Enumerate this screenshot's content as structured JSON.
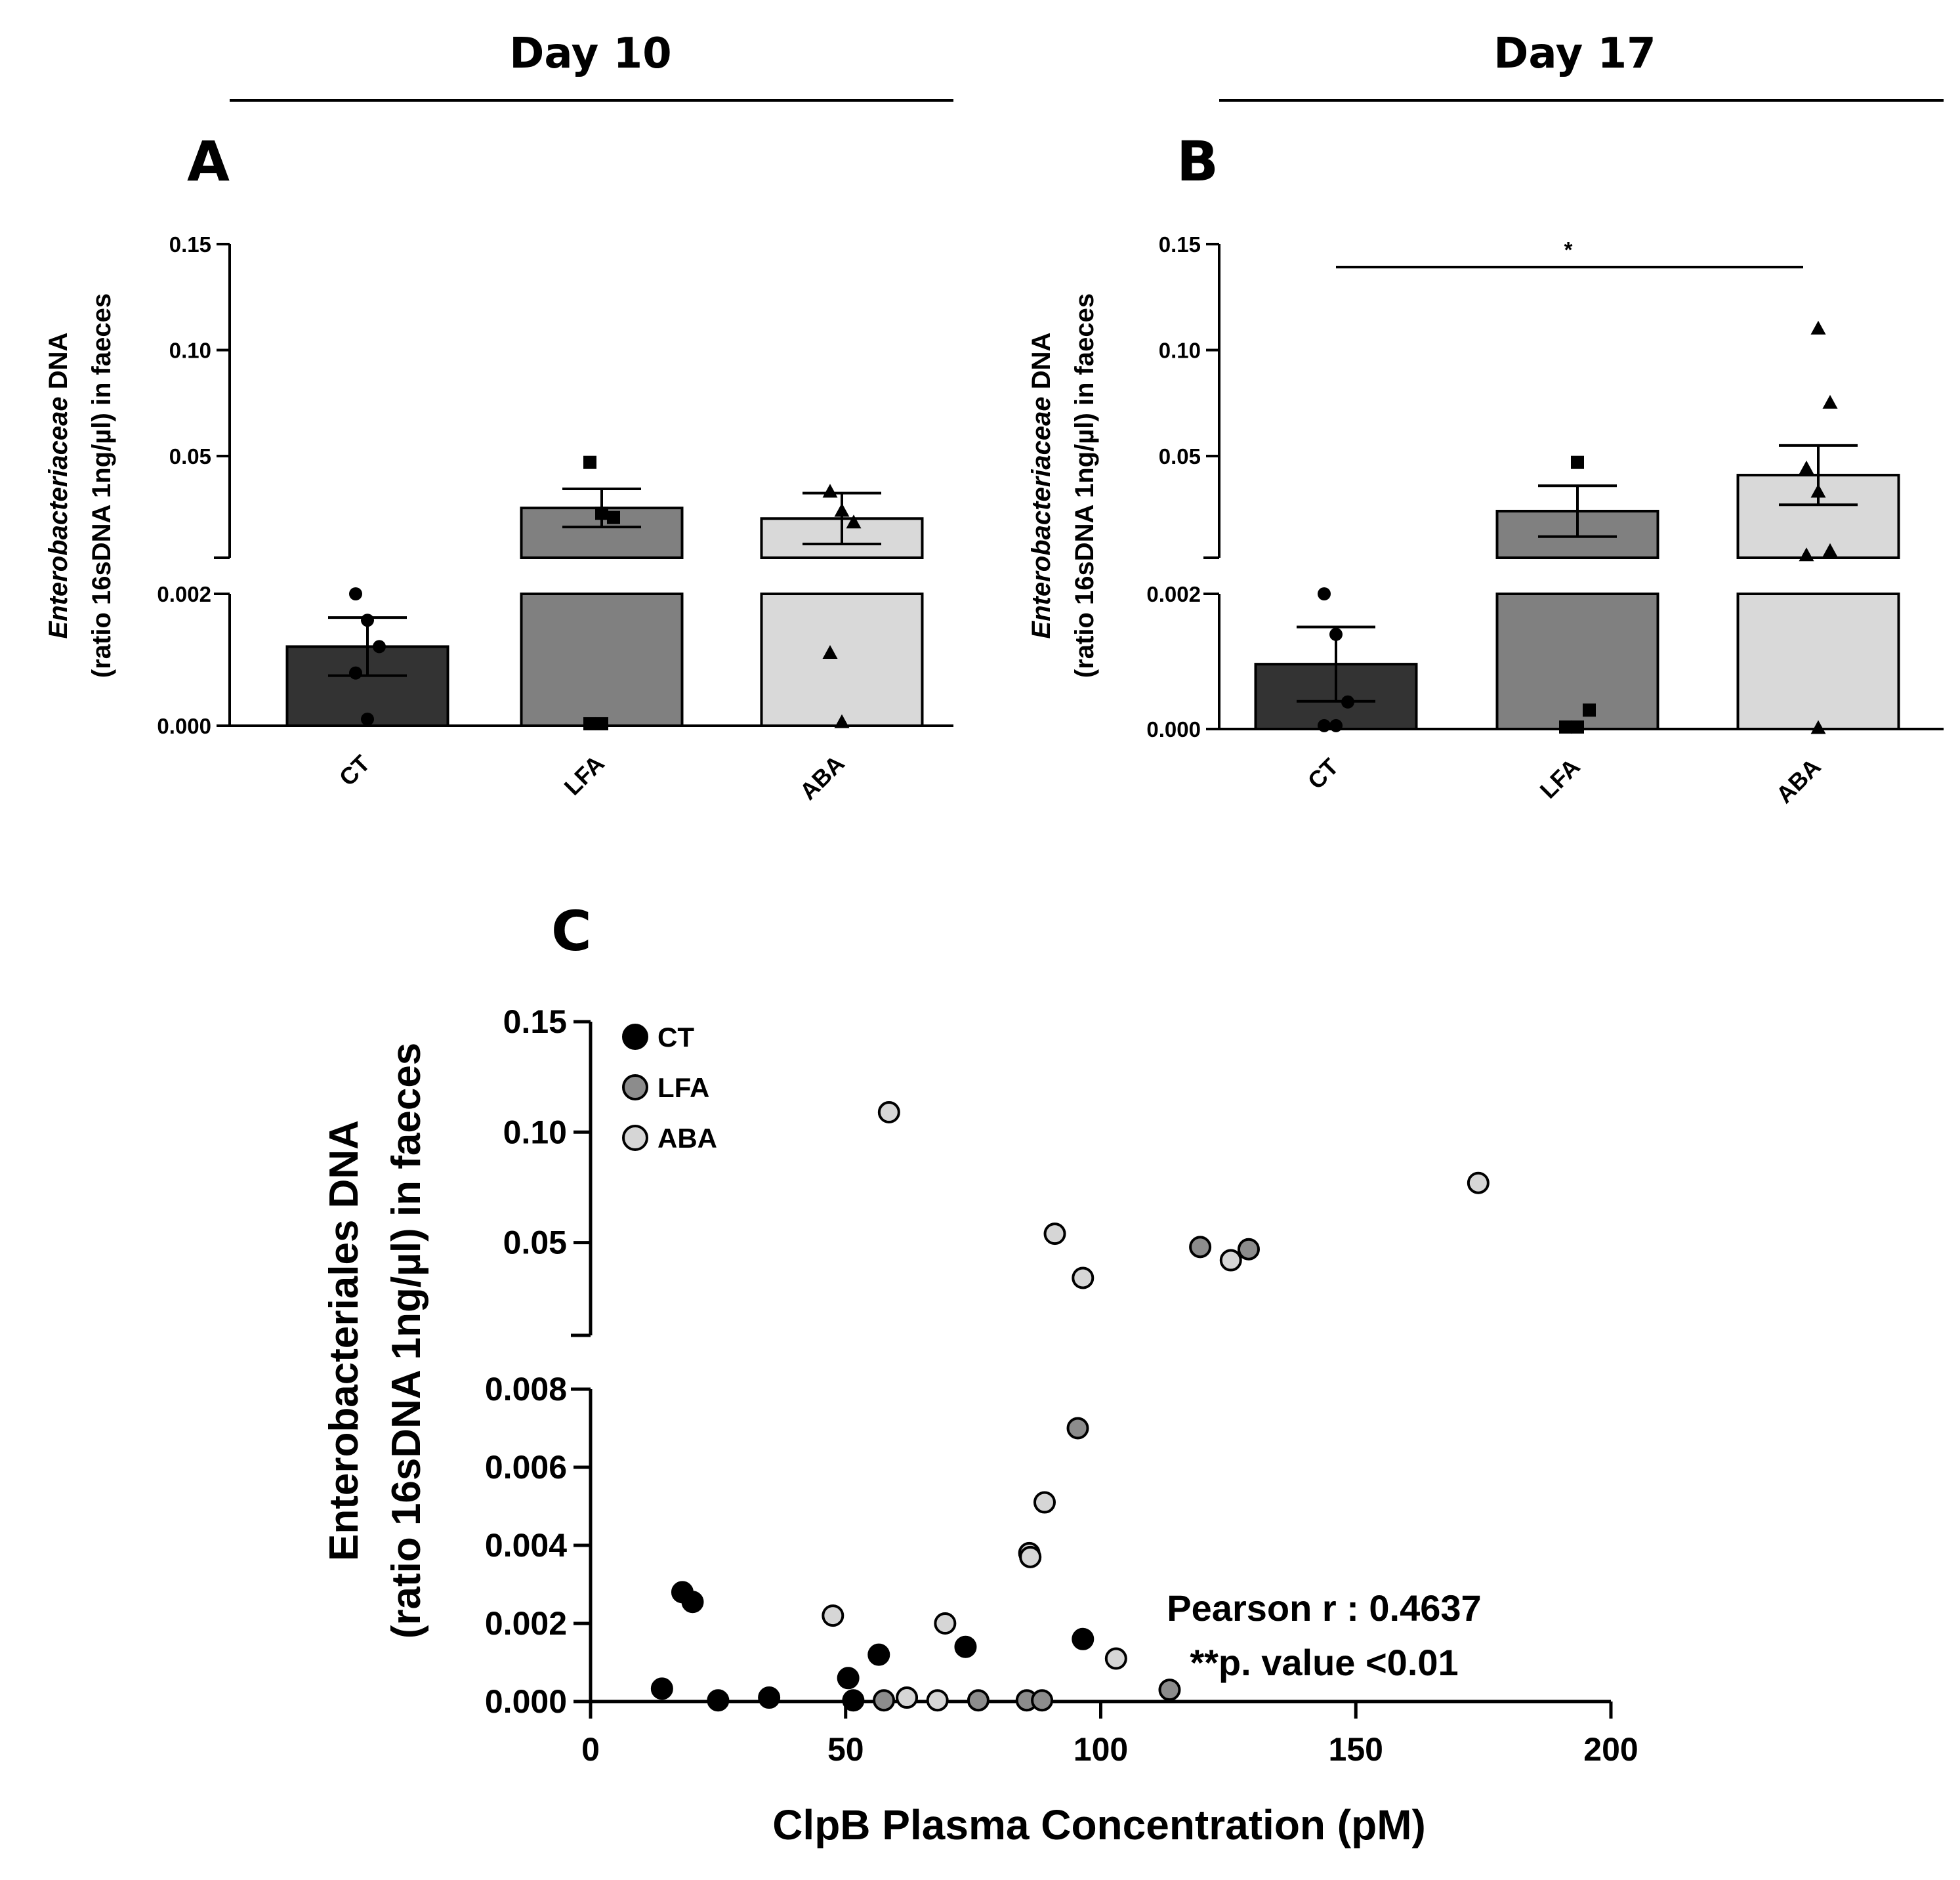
{
  "header": {
    "day_left": "Day 10",
    "day_right": "Day 17"
  },
  "panels": {
    "a": {
      "letter": "A"
    },
    "b": {
      "letter": "B",
      "significance": "*"
    },
    "c": {
      "letter": "C"
    }
  },
  "colors": {
    "ct": "#333333",
    "lfa": "#808080",
    "aba": "#d9d9d9",
    "scatter_ct": "#000000",
    "scatter_lfa": "#8c8c8c",
    "scatter_aba": "#d6d6d6"
  },
  "stats": {
    "pearson": "Pearson r : 0.4637",
    "pvalue": "**p. value <0.01"
  },
  "chart_data": [
    {
      "id": "A",
      "type": "bar",
      "title": "Day 10",
      "ylabel_italic": "Enterobacteriaceae",
      "ylabel_rest": " DNA",
      "ylabel_line2": "(ratio 16sDNA 1ng/µl) in faeces",
      "categories": [
        "CT",
        "LFA",
        "ABA"
      ],
      "y_axis_broken": true,
      "ylim_lower": [
        0,
        0.002
      ],
      "ylim_upper": [
        0.002,
        0.15
      ],
      "yticks_lower": [
        "0.000",
        "0.002"
      ],
      "yticks_upper": [
        "0.05",
        "0.10",
        "0.15"
      ],
      "means": [
        0.0012,
        0.0255,
        0.0205
      ],
      "sem": [
        0.00044,
        0.009,
        0.012
      ],
      "points": [
        [
          0.0001,
          0.0008,
          0.0012,
          0.0016,
          0.002
        ],
        [
          3e-05,
          3e-05,
          0.021,
          0.023,
          0.047
        ],
        [
          5e-05,
          0.0011,
          0.0185,
          0.024,
          0.033
        ]
      ],
      "markers": [
        "circle",
        "square",
        "triangle"
      ]
    },
    {
      "id": "B",
      "type": "bar",
      "title": "Day 17",
      "ylabel_italic": "Enterobacteriaceae",
      "ylabel_rest": " DNA",
      "ylabel_line2": "(ratio 16sDNA 1ng/µl) in faeces",
      "categories": [
        "CT",
        "LFA",
        "ABA"
      ],
      "y_axis_broken": true,
      "ylim_lower": [
        0,
        0.002
      ],
      "ylim_upper": [
        0.002,
        0.15
      ],
      "yticks_lower": [
        "0.000",
        "0.002"
      ],
      "yticks_upper": [
        "0.05",
        "0.10",
        "0.15"
      ],
      "means": [
        0.00096,
        0.024,
        0.041
      ],
      "sem": [
        0.00055,
        0.012,
        0.014
      ],
      "points": [
        [
          5e-05,
          5e-05,
          0.0004,
          0.0014,
          0.002
        ],
        [
          3e-05,
          3e-05,
          0.00028,
          0.047
        ],
        [
          1e-05,
          0.003,
          0.005,
          0.033,
          0.044,
          0.075,
          0.11
        ]
      ],
      "markers": [
        "circle",
        "square",
        "triangle"
      ],
      "significance": {
        "from": "CT",
        "to": "ABA",
        "label": "*"
      }
    },
    {
      "id": "C",
      "type": "scatter",
      "xlabel": "ClpB Plasma Concentration (pM)",
      "ylabel": "Enterobacteriales DNA",
      "ylabel_line2": "(ratio 16sDNA 1ng/µl) in faeces",
      "xlim": [
        0,
        200
      ],
      "xticks": [
        "0",
        "50",
        "100",
        "150",
        "200"
      ],
      "y_axis_broken": true,
      "ylim_lower": [
        0,
        0.008
      ],
      "ylim_upper": [
        0.008,
        0.15
      ],
      "yticks_lower": [
        "0.000",
        "0.002",
        "0.004",
        "0.006",
        "0.008"
      ],
      "yticks_upper": [
        "0.05",
        "0.10",
        "0.15"
      ],
      "series": [
        {
          "name": "CT",
          "points": [
            [
              14,
              0.00033
            ],
            [
              18,
              0.0028
            ],
            [
              20,
              0.00255
            ],
            [
              25,
              3e-05
            ],
            [
              35,
              0.0001
            ],
            [
              50.5,
              0.0006
            ],
            [
              51.5,
              3e-05
            ],
            [
              56.5,
              0.0012
            ],
            [
              73.5,
              0.0014
            ],
            [
              96.5,
              0.0016
            ]
          ]
        },
        {
          "name": "LFA",
          "points": [
            [
              57.5,
              3e-05
            ],
            [
              76,
              3e-05
            ],
            [
              85.5,
              3e-05
            ],
            [
              88.5,
              3e-05
            ],
            [
              95.5,
              0.007
            ],
            [
              113.5,
              0.0003
            ],
            [
              119.5,
              0.048
            ],
            [
              129,
              0.047
            ]
          ]
        },
        {
          "name": "ABA",
          "points": [
            [
              47.5,
              0.0022
            ],
            [
              58.5,
              0.109
            ],
            [
              62,
              0.0001
            ],
            [
              68,
              3e-05
            ],
            [
              69.5,
              0.002
            ],
            [
              86,
              0.0038
            ],
            [
              86.2,
              0.0037
            ],
            [
              89,
              0.0051
            ],
            [
              91,
              0.054
            ],
            [
              96.5,
              0.034
            ],
            [
              103,
              0.0011
            ],
            [
              125.5,
              0.042
            ],
            [
              174,
              0.077
            ]
          ]
        }
      ]
    }
  ]
}
